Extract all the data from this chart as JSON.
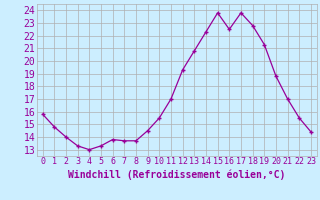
{
  "x": [
    0,
    1,
    2,
    3,
    4,
    5,
    6,
    7,
    8,
    9,
    10,
    11,
    12,
    13,
    14,
    15,
    16,
    17,
    18,
    19,
    20,
    21,
    22,
    23
  ],
  "y": [
    15.8,
    14.8,
    14.0,
    13.3,
    13.0,
    13.3,
    13.8,
    13.7,
    13.7,
    14.5,
    15.5,
    17.0,
    19.3,
    20.8,
    22.3,
    23.8,
    22.5,
    23.8,
    22.8,
    21.3,
    18.8,
    17.0,
    15.5,
    14.4
  ],
  "line_color": "#990099",
  "marker": "+",
  "bg_color": "#cceeff",
  "grid_color": "#b0b0b0",
  "xlabel": "Windchill (Refroidissement éolien,°C)",
  "ylabel_ticks": [
    13,
    14,
    15,
    16,
    17,
    18,
    19,
    20,
    21,
    22,
    23,
    24
  ],
  "xlim": [
    -0.5,
    23.5
  ],
  "ylim": [
    12.5,
    24.5
  ],
  "xlabel_color": "#990099",
  "tick_color": "#990099",
  "xlabel_fontsize": 7,
  "ytick_fontsize": 7,
  "xtick_fontsize": 6
}
